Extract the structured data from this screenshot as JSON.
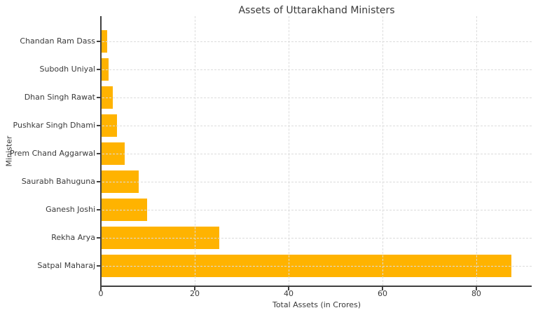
{
  "chart_data": {
    "type": "bar",
    "orientation": "horizontal",
    "title": "Assets of Uttarakhand Ministers",
    "xlabel": "Total Assets (in Crores)",
    "ylabel": "Minister",
    "categories_top_to_bottom": [
      "Chandan Ram Dass",
      "Subodh Uniyal",
      "Dhan Singh Rawat",
      "Pushkar Singh Dhami",
      "Prem Chand Aggarwal",
      "Saurabh Bahuguna",
      "Ganesh Joshi",
      "Rekha Arya",
      "Satpal Maharaj"
    ],
    "values": [
      1.3,
      1.7,
      2.6,
      3.4,
      5.1,
      8.0,
      9.8,
      25.2,
      87.5
    ],
    "x_ticks": [
      0,
      20,
      40,
      60,
      80
    ],
    "xlim": [
      0,
      91.8
    ],
    "bar_color": "#FFB300",
    "grid": "dashed light-gray, horizontal at each bar, vertical at each x tick",
    "legend": "none"
  }
}
